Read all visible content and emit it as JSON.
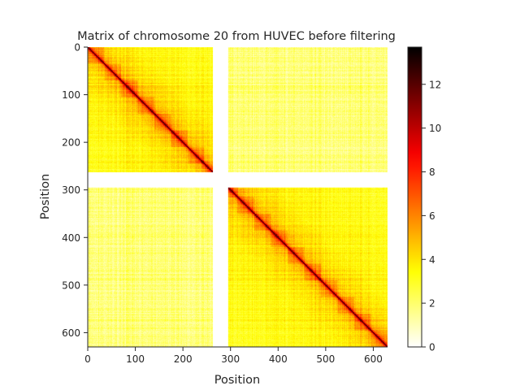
{
  "chart_data": {
    "type": "heatmap",
    "title": "Matrix of chromosome 20 from HUVEC before filtering",
    "xlabel": "Position",
    "ylabel": "Position",
    "n_bins": 630,
    "xlim": [
      0,
      630
    ],
    "ylim": [
      630,
      0
    ],
    "x_ticks": [
      0,
      100,
      200,
      300,
      400,
      500,
      600
    ],
    "y_ticks": [
      0,
      100,
      200,
      300,
      400,
      500,
      600
    ],
    "x_tick_labels": [
      "0",
      "100",
      "200",
      "300",
      "400",
      "500",
      "600"
    ],
    "y_tick_labels": [
      "0",
      "100",
      "200",
      "300",
      "400",
      "500",
      "600"
    ],
    "masked_bins": [
      [
        263,
        295
      ]
    ],
    "colormap": "hot_r",
    "colorbar": {
      "min": 0,
      "max": 13.7,
      "ticks": [
        0,
        2,
        4,
        6,
        8,
        10,
        12
      ],
      "tick_labels": [
        "0",
        "2",
        "4",
        "6",
        "8",
        "10",
        "12"
      ]
    },
    "value_model": {
      "diagonal": 13,
      "near_diagonal_decay": [
        [
          0,
          13
        ],
        [
          2,
          9
        ],
        [
          6,
          6
        ],
        [
          15,
          5
        ],
        [
          40,
          4.3
        ],
        [
          100,
          3.6
        ],
        [
          300,
          3.0
        ]
      ],
      "intra_arm_background": [
        2.5,
        4.5
      ],
      "inter_arm_background": [
        1.0,
        3.5
      ]
    },
    "grid": false
  }
}
